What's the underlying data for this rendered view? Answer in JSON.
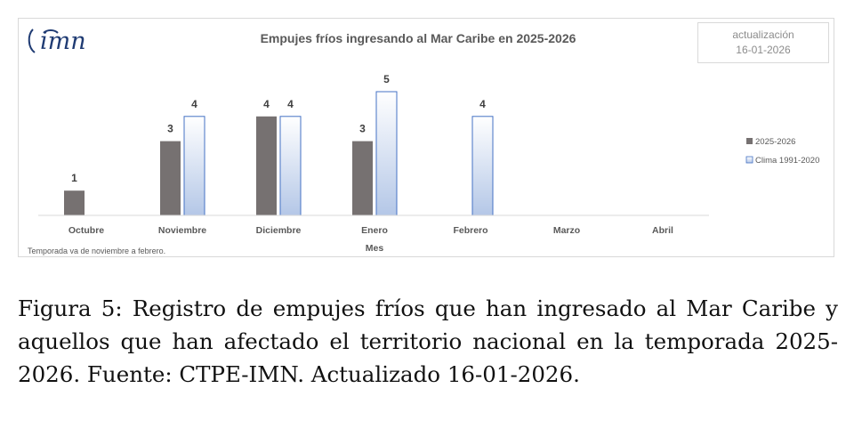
{
  "logo": {
    "text": "imn"
  },
  "update_box": {
    "line1": "actualización",
    "line2": "16-01-2026"
  },
  "note": "Temporada va de noviembre a febrero.",
  "caption": "Figura 5: Registro de empujes fríos que han ingresado al Mar Caribe y aquellos que han afectado el territorio nacional en la temporada 2025-2026. Fuente: CTPE-IMN. Actualizado 16-01-2026.",
  "colors": {
    "series_2025": "#767171",
    "series_clima_fill_top": "#ffffff",
    "series_clima_fill_bottom": "#b4c7e7",
    "series_clima_border": "#4472c4",
    "text": "#595959"
  },
  "chart_data": {
    "type": "bar",
    "title": "Empujes fríos ingresando al Mar Caribe en 2025-2026",
    "xlabel": "Mes",
    "ylabel": "",
    "categories": [
      "Octubre",
      "Noviembre",
      "Diciembre",
      "Enero",
      "Febrero",
      "Marzo",
      "Abril"
    ],
    "series": [
      {
        "name": "2025-2026",
        "values": [
          1,
          3,
          4,
          3,
          null,
          null,
          null
        ]
      },
      {
        "name": "Clima 1991-2020",
        "values": [
          null,
          4,
          4,
          5,
          4,
          null,
          null
        ]
      }
    ],
    "ylim": [
      0,
      5
    ],
    "grid": false,
    "legend": "right",
    "data_labels": true
  }
}
